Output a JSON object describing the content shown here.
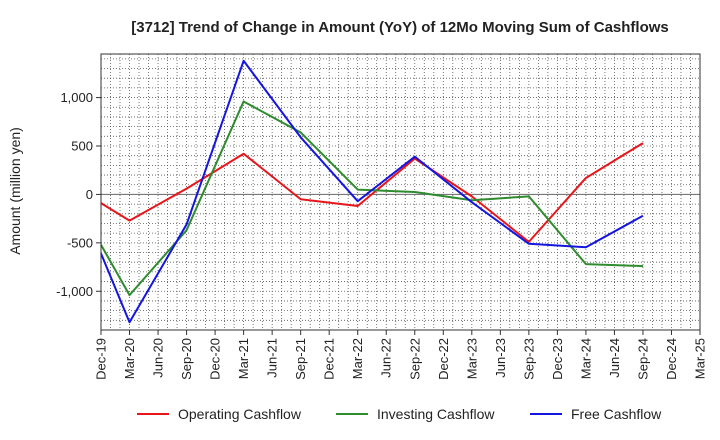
{
  "chart_data": {
    "type": "line",
    "title": "[3712]  Trend of Change in Amount (YoY) of 12Mo Moving Sum of Cashflows",
    "xlabel": "",
    "ylabel": "Amount (million yen)",
    "ylim": [
      -1400,
      1450
    ],
    "yticks": [
      1000,
      500,
      0,
      -500,
      -1000
    ],
    "ytick_labels": [
      "1,000",
      "500",
      "0",
      "-500",
      "-1,000"
    ],
    "categories": [
      "Dec-19",
      "Mar-20",
      "Jun-20",
      "Sep-20",
      "Dec-20",
      "Mar-21",
      "Jun-21",
      "Sep-21",
      "Dec-21",
      "Mar-22",
      "Jun-22",
      "Sep-22",
      "Dec-22",
      "Mar-23",
      "Jun-23",
      "Sep-23",
      "Dec-23",
      "Mar-24",
      "Jun-24",
      "Sep-24",
      "Dec-24",
      "Mar-25"
    ],
    "grid": true,
    "legend_position": "bottom",
    "series": [
      {
        "name": "Operating Cashflow",
        "color": "#e8161a",
        "values": [
          -90,
          -270,
          null,
          60,
          null,
          420,
          null,
          -50,
          null,
          -120,
          null,
          370,
          null,
          -20,
          null,
          -490,
          null,
          170,
          null,
          530,
          null,
          null
        ]
      },
      {
        "name": "Investing Cashflow",
        "color": "#2e8b2e",
        "values": [
          -520,
          -1040,
          null,
          -370,
          null,
          960,
          null,
          640,
          null,
          50,
          null,
          25,
          null,
          -60,
          null,
          -20,
          null,
          -720,
          null,
          -740,
          null,
          null
        ]
      },
      {
        "name": "Free Cashflow",
        "color": "#1515e0",
        "values": [
          -610,
          -1320,
          null,
          -310,
          null,
          1380,
          null,
          590,
          null,
          -70,
          null,
          390,
          null,
          -80,
          null,
          -510,
          null,
          -545,
          null,
          -220,
          null,
          null
        ]
      }
    ]
  }
}
